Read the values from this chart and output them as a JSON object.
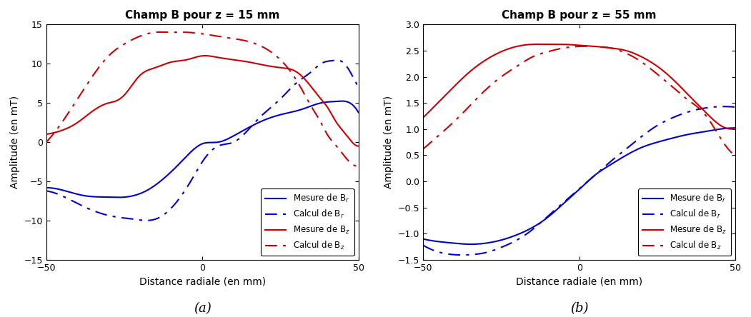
{
  "plot_a": {
    "title": "Champ B pour z = 15 mm",
    "xlabel": "Distance radiale (en mm)",
    "ylabel": "Amplitude (en mT)",
    "xlim": [
      -50,
      50
    ],
    "ylim": [
      -15,
      15
    ],
    "yticks": [
      -15,
      -10,
      -5,
      0,
      5,
      10,
      15
    ],
    "xticks": [
      -50,
      0,
      50
    ],
    "Br_mesure_x": [
      -50,
      -43,
      -38,
      -30,
      -25,
      -18,
      -12,
      -8,
      -3,
      0,
      5,
      10,
      18,
      25,
      32,
      38,
      43,
      48,
      50
    ],
    "Br_mesure_y": [
      -5.8,
      -6.3,
      -6.8,
      -7.0,
      -7.0,
      -6.2,
      -4.5,
      -3.0,
      -1.0,
      -0.2,
      0.0,
      0.8,
      2.5,
      3.5,
      4.2,
      5.0,
      5.2,
      4.8,
      3.8
    ],
    "Br_calcul_x": [
      -50,
      -43,
      -38,
      -33,
      -28,
      -22,
      -15,
      -8,
      -3,
      0,
      5,
      10,
      18,
      25,
      30,
      35,
      38,
      42,
      45,
      48,
      50
    ],
    "Br_calcul_y": [
      -6.2,
      -7.2,
      -8.2,
      -9.0,
      -9.5,
      -9.8,
      -9.8,
      -7.5,
      -4.5,
      -2.5,
      -0.5,
      0.0,
      3.0,
      5.5,
      7.5,
      9.0,
      10.0,
      10.4,
      10.2,
      8.5,
      7.0
    ],
    "Bz_mesure_x": [
      -50,
      -45,
      -40,
      -35,
      -30,
      -28,
      -25,
      -20,
      -15,
      -10,
      -5,
      0,
      5,
      10,
      15,
      20,
      25,
      30,
      35,
      38,
      40,
      43,
      46,
      48,
      50
    ],
    "Bz_mesure_y": [
      1.0,
      1.5,
      2.5,
      4.0,
      5.0,
      5.2,
      6.0,
      8.5,
      9.5,
      10.2,
      10.5,
      11.0,
      10.8,
      10.5,
      10.2,
      9.8,
      9.5,
      9.0,
      7.0,
      5.5,
      4.5,
      2.5,
      1.0,
      0.0,
      -0.5
    ],
    "Bz_calcul_x": [
      -50,
      -45,
      -40,
      -35,
      -30,
      -25,
      -20,
      -15,
      -10,
      -5,
      0,
      5,
      10,
      15,
      20,
      25,
      30,
      35,
      38,
      40,
      43,
      46,
      48,
      50
    ],
    "Bz_calcul_y": [
      0.0,
      2.5,
      5.5,
      8.5,
      11.0,
      12.5,
      13.5,
      14.0,
      14.0,
      14.0,
      13.8,
      13.5,
      13.2,
      12.8,
      12.0,
      10.5,
      8.0,
      4.5,
      2.5,
      1.0,
      -0.5,
      -2.0,
      -2.8,
      -3.0
    ],
    "label_Br_mesure": "Mesure de B$_r$",
    "label_Br_calcul": "Calcul de B$_r$",
    "label_Bz_mesure": "Mesure de B$_z$",
    "label_Bz_calcul": "Calcul de B$_z$",
    "subplot_label": "(a)"
  },
  "plot_b": {
    "title": "Champ B pour z = 55 mm",
    "xlabel": "Distance radiale (en mm)",
    "ylabel": "Amplitude (en mT)",
    "xlim": [
      -50,
      50
    ],
    "ylim": [
      -1.5,
      3.0
    ],
    "yticks": [
      -1.5,
      -1.0,
      -0.5,
      0.0,
      0.5,
      1.0,
      1.5,
      2.0,
      2.5,
      3.0
    ],
    "xticks": [
      -50,
      0,
      50
    ],
    "Br_mesure_x": [
      -50,
      -45,
      -40,
      -35,
      -30,
      -25,
      -20,
      -15,
      -10,
      -5,
      0,
      5,
      10,
      15,
      20,
      25,
      30,
      35,
      40,
      45,
      50
    ],
    "Br_mesure_y": [
      -1.1,
      -1.15,
      -1.18,
      -1.2,
      -1.18,
      -1.12,
      -1.02,
      -0.88,
      -0.68,
      -0.42,
      -0.15,
      0.12,
      0.32,
      0.5,
      0.65,
      0.75,
      0.83,
      0.9,
      0.95,
      1.0,
      1.02
    ],
    "Br_calcul_x": [
      -50,
      -45,
      -40,
      -35,
      -30,
      -25,
      -20,
      -15,
      -10,
      -5,
      0,
      5,
      10,
      15,
      20,
      25,
      30,
      35,
      40,
      45,
      50
    ],
    "Br_calcul_y": [
      -1.22,
      -1.35,
      -1.4,
      -1.4,
      -1.36,
      -1.26,
      -1.12,
      -0.92,
      -0.66,
      -0.4,
      -0.14,
      0.12,
      0.38,
      0.62,
      0.86,
      1.07,
      1.22,
      1.33,
      1.4,
      1.43,
      1.42
    ],
    "Bz_mesure_x": [
      -50,
      -45,
      -40,
      -35,
      -30,
      -25,
      -20,
      -15,
      -10,
      -5,
      0,
      5,
      10,
      15,
      20,
      25,
      30,
      35,
      40,
      45,
      50
    ],
    "Bz_mesure_y": [
      1.22,
      1.52,
      1.82,
      2.1,
      2.32,
      2.48,
      2.58,
      2.62,
      2.62,
      2.62,
      2.6,
      2.58,
      2.55,
      2.5,
      2.38,
      2.2,
      1.95,
      1.65,
      1.35,
      1.08,
      1.02
    ],
    "Bz_calcul_x": [
      -50,
      -45,
      -40,
      -35,
      -30,
      -25,
      -20,
      -15,
      -10,
      -5,
      0,
      5,
      10,
      15,
      20,
      25,
      30,
      35,
      40,
      45,
      50
    ],
    "Bz_calcul_y": [
      0.62,
      0.88,
      1.15,
      1.45,
      1.75,
      2.0,
      2.2,
      2.38,
      2.48,
      2.55,
      2.58,
      2.58,
      2.55,
      2.45,
      2.28,
      2.05,
      1.8,
      1.55,
      1.3,
      0.85,
      0.5
    ],
    "label_Br_mesure": "Mesure de B$_r$",
    "label_Br_calcul": "Calcul de B$_r$",
    "label_Bz_mesure": "Mesure de B$_z$",
    "label_Bz_calcul": "Calcul de B$_z$",
    "subplot_label": "(b)"
  },
  "blue_color": "#0000CC",
  "red_color": "#CC0000",
  "background_color": "#ffffff",
  "fig_facecolor": "#ffffff"
}
